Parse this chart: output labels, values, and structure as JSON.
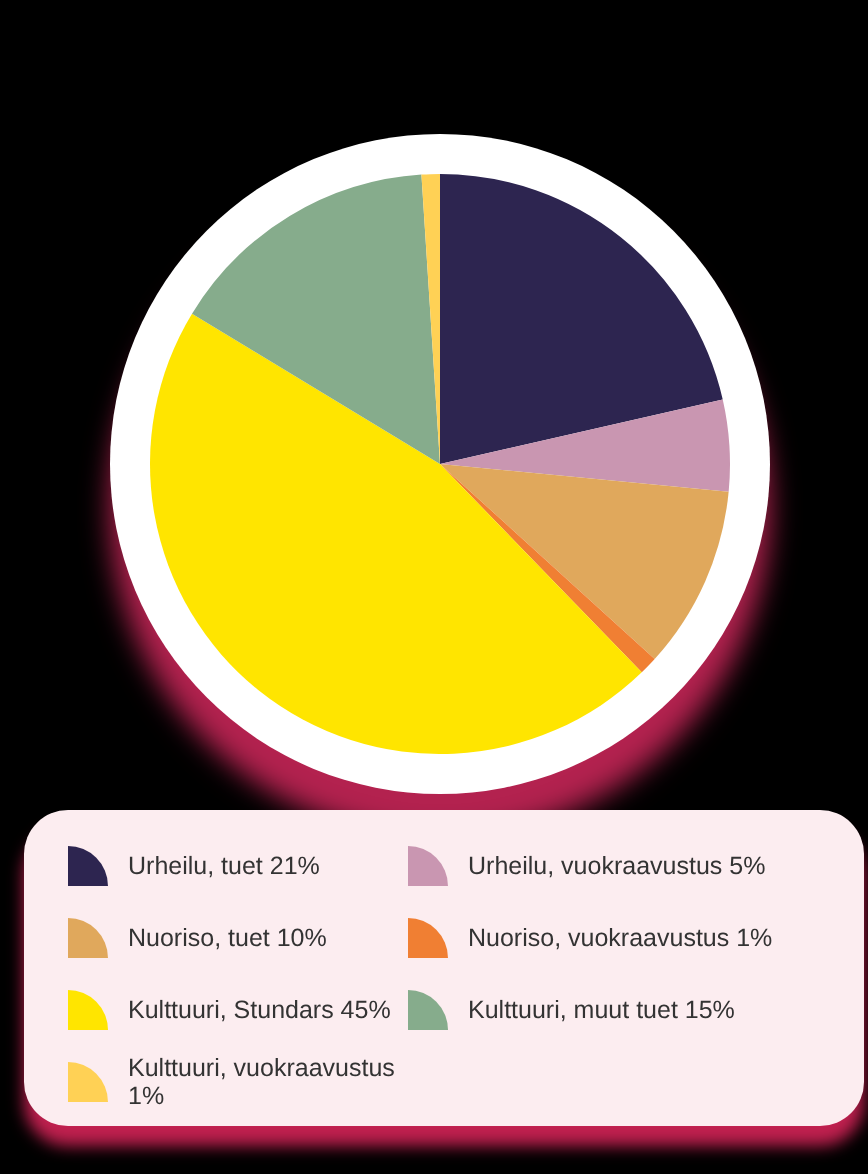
{
  "chart_data": {
    "type": "pie",
    "categories": [
      "Urheilu, tuet 21%",
      "Urheilu, vuokraavustus 5%",
      "Nuoriso, tuet 10%",
      "Nuoriso, vuokraavustus 1%",
      "Kulttuuri, Stundars 45%",
      "Kulttuuri, muut tuet 15%",
      "Kulttuuri, vuokraavustus 1%"
    ],
    "values": [
      21,
      5,
      10,
      1,
      45,
      15,
      1
    ],
    "colors": [
      "#2d2550",
      "#c996b1",
      "#e0a85c",
      "#f07f33",
      "#ffe500",
      "#86ac8c",
      "#ffd155"
    ],
    "legend": "bottom"
  }
}
